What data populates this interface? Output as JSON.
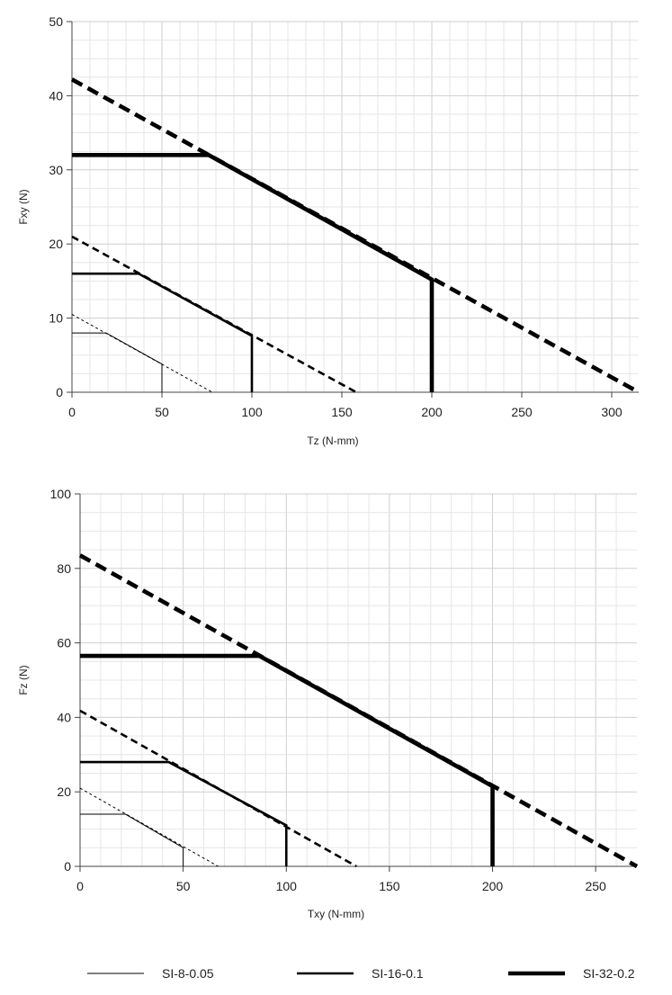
{
  "chart_data": [
    {
      "type": "line",
      "xlabel": "Tz (N-mm)",
      "ylabel": "Fxy (N)",
      "xlim": [
        0,
        315
      ],
      "ylim": [
        0,
        50
      ],
      "xticks": [
        0,
        50,
        100,
        150,
        200,
        250,
        300
      ],
      "yticks": [
        0,
        10,
        20,
        30,
        40,
        50
      ],
      "grid": true,
      "series": [
        {
          "name": "SI-8-0.05",
          "boundary": [
            [
              0,
              10.5
            ],
            [
              78,
              0
            ]
          ],
          "envelope": [
            [
              0,
              8
            ],
            [
              19,
              8
            ],
            [
              50,
              3.8
            ],
            [
              50,
              0
            ]
          ]
        },
        {
          "name": "SI-16-0.1",
          "boundary": [
            [
              0,
              21
            ],
            [
              158,
              0
            ]
          ],
          "envelope": [
            [
              0,
              16
            ],
            [
              37,
              16
            ],
            [
              100,
              7.6
            ],
            [
              100,
              0
            ]
          ]
        },
        {
          "name": "SI-32-0.2",
          "boundary": [
            [
              0,
              42.2
            ],
            [
              315,
              0
            ]
          ],
          "envelope": [
            [
              0,
              32
            ],
            [
              76,
              32
            ],
            [
              200,
              15.2
            ],
            [
              200,
              0
            ]
          ]
        }
      ]
    },
    {
      "type": "line",
      "xlabel": "Txy (N-mm)",
      "ylabel": "Fz (N)",
      "xlim": [
        0,
        270
      ],
      "ylim": [
        0,
        100
      ],
      "xticks": [
        0,
        50,
        100,
        150,
        200,
        250
      ],
      "yticks": [
        0,
        20,
        40,
        60,
        80,
        100
      ],
      "grid": true,
      "series": [
        {
          "name": "SI-8-0.05",
          "boundary": [
            [
              0,
              21
            ],
            [
              67,
              0
            ]
          ],
          "envelope": [
            [
              0,
              14
            ],
            [
              22,
              14
            ],
            [
              50,
              5
            ],
            [
              50,
              0
            ]
          ]
        },
        {
          "name": "SI-16-0.1",
          "boundary": [
            [
              0,
              41.8
            ],
            [
              134,
              0
            ]
          ],
          "envelope": [
            [
              0,
              28
            ],
            [
              43,
              28
            ],
            [
              100,
              11
            ],
            [
              100,
              0
            ]
          ]
        },
        {
          "name": "SI-32-0.2",
          "boundary": [
            [
              0,
              83.5
            ],
            [
              270,
              0
            ]
          ],
          "envelope": [
            [
              0,
              56.5
            ],
            [
              87,
              56.5
            ],
            [
              200,
              21.5
            ],
            [
              200,
              0
            ]
          ]
        }
      ]
    }
  ],
  "legend": {
    "placement": "bottom",
    "items": [
      {
        "label": "SI-8-0.05"
      },
      {
        "label": "SI-16-0.1"
      },
      {
        "label": "SI-32-0.2"
      }
    ]
  }
}
